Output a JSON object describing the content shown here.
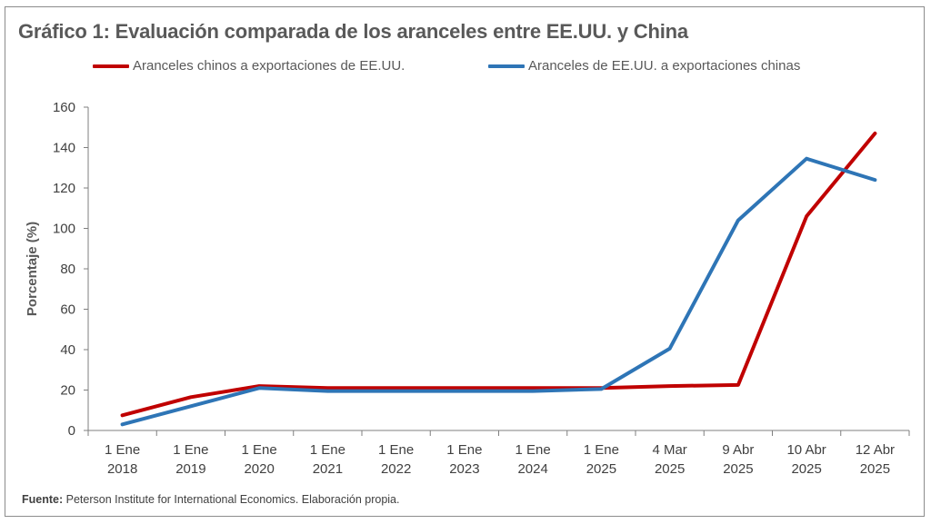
{
  "chart_data": {
    "type": "line",
    "title": "Gráfico 1: Evaluación comparada de los aranceles entre EE.UU. y China",
    "ylabel": "Porcentaje (%)",
    "xlabel": "",
    "ylim": [
      0,
      160
    ],
    "yticks": [
      0,
      20,
      40,
      60,
      80,
      100,
      120,
      140,
      160
    ],
    "grid": false,
    "legend_position": "top",
    "categories": [
      [
        "1 Ene",
        "2018"
      ],
      [
        "1 Ene",
        "2019"
      ],
      [
        "1 Ene",
        "2020"
      ],
      [
        "1 Ene",
        "2021"
      ],
      [
        "1 Ene",
        "2022"
      ],
      [
        "1 Ene",
        "2023"
      ],
      [
        "1 Ene",
        "2024"
      ],
      [
        "1 Ene",
        "2025"
      ],
      [
        "4 Mar",
        "2025"
      ],
      [
        "9 Abr",
        "2025"
      ],
      [
        "10 Abr",
        "2025"
      ],
      [
        "12 Abr",
        "2025"
      ]
    ],
    "series": [
      {
        "name": "Aranceles chinos a exportaciones de EE.UU.",
        "color": "#c00000",
        "values": [
          7.5,
          16.5,
          22,
          21,
          21,
          21,
          21,
          21,
          22,
          22.5,
          106,
          147
        ]
      },
      {
        "name": "Aranceles de EE.UU. a exportaciones chinas",
        "color": "#2e75b6",
        "values": [
          3,
          12,
          21,
          19.5,
          19.5,
          19.5,
          19.5,
          20.5,
          40.5,
          104,
          134.5,
          124
        ]
      }
    ]
  },
  "footer": {
    "label": "Fuente:",
    "text": " Peterson Institute for International  Economics. Elaboración propia."
  }
}
